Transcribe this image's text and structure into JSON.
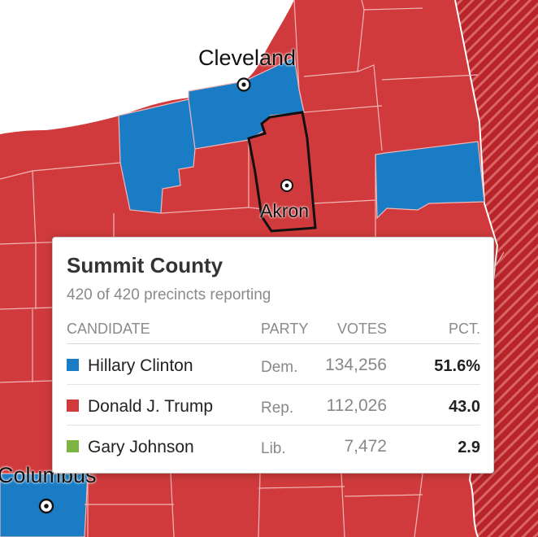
{
  "colors": {
    "republican": "#d03a3c",
    "democrat": "#1a7cc4",
    "libertarian": "#7cb342",
    "water": "#ffffff",
    "county_border": "#f2b6b6",
    "highlight_border": "#111111"
  },
  "cities": {
    "cleveland": "Cleveland",
    "akron": "Akron",
    "columbus": "Columbus"
  },
  "tooltip": {
    "county": "Summit County",
    "precincts": "420 of 420 precincts reporting",
    "headers": {
      "candidate": "CANDIDATE",
      "party": "PARTY",
      "votes": "VOTES",
      "pct": "PCT."
    },
    "rows": [
      {
        "candidate": "Hillary Clinton",
        "party": "Dem.",
        "votes": "134,256",
        "pct": "51.6%",
        "color": "#1a7cc4"
      },
      {
        "candidate": "Donald J. Trump",
        "party": "Rep.",
        "votes": "112,026",
        "pct": "43.0",
        "color": "#d03a3c"
      },
      {
        "candidate": "Gary Johnson",
        "party": "Lib.",
        "votes": "7,472",
        "pct": "2.9",
        "color": "#7cb342"
      }
    ]
  }
}
